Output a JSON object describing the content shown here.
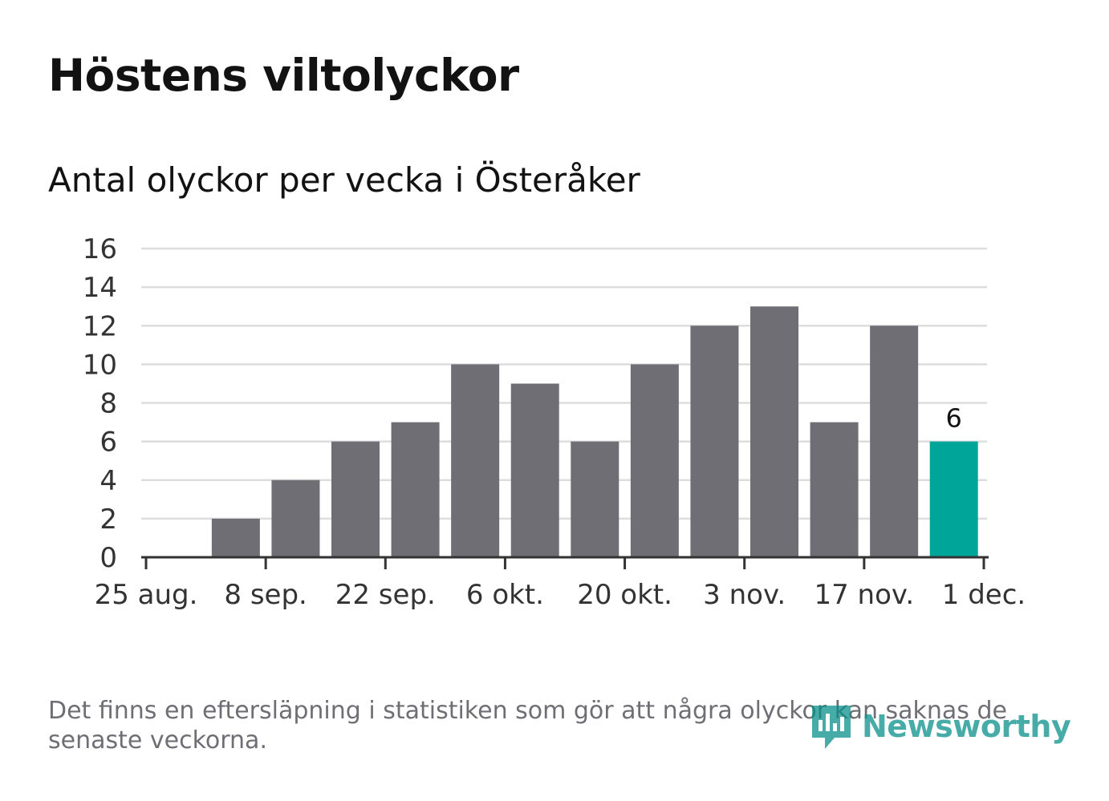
{
  "title": "Höstens viltolyckor",
  "subtitle": "Antal olyckor per vecka i Österåker",
  "footnote": "Det finns en eftersläpning i statistiken som gör att några olyckor kan saknas de senaste veckorna.",
  "brand": {
    "name": "Newsworthy",
    "icon": "newsworthy-logo-icon",
    "color": "#0a8f8a"
  },
  "colors": {
    "bar": "#6f6e75",
    "highlight": "#00a599",
    "grid": "#dddddd",
    "axis": "#333333",
    "label": "#121212"
  },
  "chart_data": {
    "type": "bar",
    "title": "Antal olyckor per vecka i Österåker",
    "xlabel": "",
    "ylabel": "",
    "ylim": [
      0,
      16
    ],
    "yticks": [
      0,
      2,
      4,
      6,
      8,
      10,
      12,
      14,
      16
    ],
    "grid": true,
    "x_axis": {
      "start_week": 0,
      "end_week": 14,
      "ticks": [
        {
          "week": 0,
          "label": "25 aug."
        },
        {
          "week": 2,
          "label": "8 sep."
        },
        {
          "week": 4,
          "label": "22 sep."
        },
        {
          "week": 6,
          "label": "6 okt."
        },
        {
          "week": 8,
          "label": "20 okt."
        },
        {
          "week": 10,
          "label": "3 nov."
        },
        {
          "week": 12,
          "label": "17 nov."
        },
        {
          "week": 14,
          "label": "1 dec."
        }
      ]
    },
    "series": [
      {
        "name": "Antal olyckor",
        "values": [
          {
            "week": 0,
            "value": 0
          },
          {
            "week": 1,
            "value": 2
          },
          {
            "week": 2,
            "value": 4
          },
          {
            "week": 3,
            "value": 6
          },
          {
            "week": 4,
            "value": 7
          },
          {
            "week": 5,
            "value": 10
          },
          {
            "week": 6,
            "value": 9
          },
          {
            "week": 7,
            "value": 6
          },
          {
            "week": 8,
            "value": 10
          },
          {
            "week": 9,
            "value": 12
          },
          {
            "week": 10,
            "value": 13
          },
          {
            "week": 11,
            "value": 7
          },
          {
            "week": 12,
            "value": 12
          },
          {
            "week": 13,
            "value": 6,
            "highlight": true,
            "label": "6"
          }
        ]
      }
    ]
  }
}
